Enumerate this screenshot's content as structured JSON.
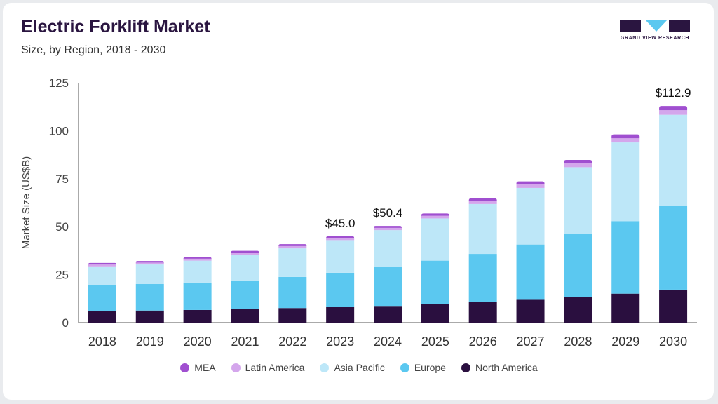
{
  "header": {
    "title": "Electric Forklift Market",
    "subtitle": "Size, by Region, 2018 - 2030"
  },
  "logo": {
    "text": "GRAND VIEW RESEARCH",
    "icon": "grand-view-research-logo"
  },
  "colors": {
    "north_america": "#2a0f3f",
    "europe": "#5bc8f0",
    "asia_pacific": "#bde7f8",
    "latin_america": "#d4a6ec",
    "mea": "#a04fd0",
    "axis": "#555555",
    "text": "#333333"
  },
  "chart_data": {
    "type": "bar",
    "stacked": true,
    "ylabel": "Market Size (US$B)",
    "ylim": [
      0,
      125
    ],
    "yticks": [
      "0",
      "25",
      "50",
      "75",
      "100",
      "125"
    ],
    "grid": false,
    "legend_position": "bottom",
    "categories": [
      "2018",
      "2019",
      "2020",
      "2021",
      "2022",
      "2023",
      "2024",
      "2025",
      "2026",
      "2027",
      "2028",
      "2029",
      "2030"
    ],
    "series": [
      {
        "name": "North America",
        "color": "#2a0f3f",
        "values": [
          6.0,
          6.3,
          6.6,
          7.1,
          7.6,
          8.2,
          8.7,
          9.7,
          10.8,
          11.9,
          13.3,
          15.1,
          17.2
        ]
      },
      {
        "name": "Europe",
        "color": "#5bc8f0",
        "values": [
          13.5,
          13.8,
          14.3,
          14.9,
          16.2,
          17.8,
          20.4,
          22.6,
          25.0,
          28.8,
          33.0,
          37.8,
          43.6
        ]
      },
      {
        "name": "Asia Pacific",
        "color": "#bde7f8",
        "values": [
          9.8,
          10.2,
          11.4,
          13.4,
          14.9,
          17.0,
          19.1,
          22.0,
          26.0,
          29.5,
          34.7,
          41.0,
          47.5
        ]
      },
      {
        "name": "Latin America",
        "color": "#d4a6ec",
        "values": [
          1.0,
          1.0,
          1.0,
          1.1,
          1.2,
          1.1,
          1.2,
          1.4,
          1.6,
          1.8,
          2.0,
          2.2,
          2.4
        ]
      },
      {
        "name": "MEA",
        "color": "#a04fd0",
        "values": [
          0.8,
          0.8,
          0.8,
          0.9,
          1.0,
          0.9,
          1.0,
          1.2,
          1.4,
          1.6,
          1.8,
          2.0,
          2.2
        ]
      }
    ],
    "data_labels": [
      {
        "category": "2023",
        "text": "$45.0"
      },
      {
        "category": "2024",
        "text": "$50.4"
      },
      {
        "category": "2030",
        "text": "$112.9"
      }
    ]
  }
}
